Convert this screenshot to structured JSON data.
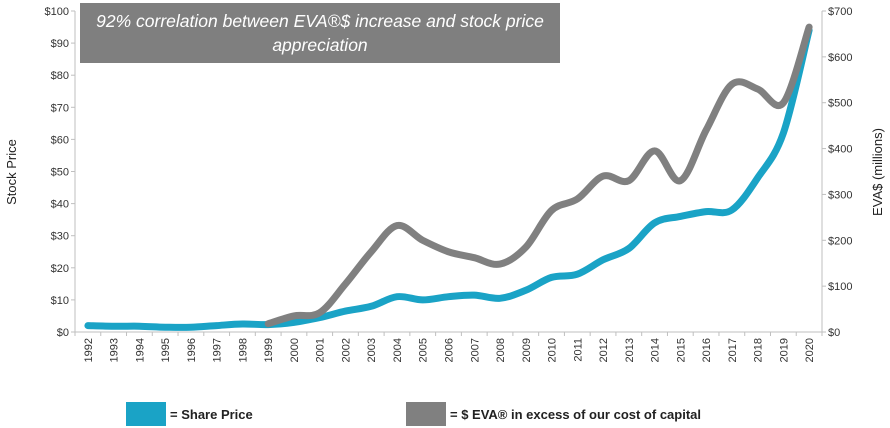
{
  "chart_data": {
    "type": "line",
    "title": "92% correlation between EVA®$ increase and stock price appreciation",
    "categories": [
      "1992",
      "1993",
      "1994",
      "1995",
      "1996",
      "1997",
      "1998",
      "1999",
      "2000",
      "2001",
      "2002",
      "2003",
      "2004",
      "2005",
      "2006",
      "2007",
      "2008",
      "2009",
      "2010",
      "2011",
      "2012",
      "2013",
      "2014",
      "2015",
      "2016",
      "2017",
      "2018",
      "2019",
      "2020"
    ],
    "left_axis": {
      "label": "Stock Price",
      "ylim": [
        0,
        100
      ],
      "ticks": [
        0,
        10,
        20,
        30,
        40,
        50,
        60,
        70,
        80,
        90,
        100
      ],
      "tick_labels": [
        "$0",
        "$10",
        "$20",
        "$30",
        "$40",
        "$50",
        "$60",
        "$70",
        "$80",
        "$90",
        "$100"
      ]
    },
    "right_axis": {
      "label": "EVA$ (millions)",
      "ylim": [
        0,
        700
      ],
      "ticks": [
        0,
        100,
        200,
        300,
        400,
        500,
        600,
        700
      ],
      "tick_labels": [
        "$0",
        "$100",
        "$200",
        "$300",
        "$400",
        "$500",
        "$600",
        "$700"
      ]
    },
    "series": [
      {
        "name": "= Share Price",
        "axis": "left",
        "color": "#1aa3c6",
        "values": [
          2,
          1.8,
          1.8,
          1.5,
          1.5,
          2,
          2.5,
          2.3,
          3,
          4.5,
          6.5,
          8,
          11,
          10,
          11,
          11.5,
          10.5,
          13,
          17,
          18,
          22.5,
          26,
          34,
          36,
          37.5,
          38,
          48,
          62,
          94
        ]
      },
      {
        "name": "= $ EVA® in excess of our cost of capital",
        "axis": "right",
        "color": "#808080",
        "values": [
          null,
          null,
          null,
          null,
          null,
          null,
          null,
          18,
          35,
          42,
          105,
          175,
          232,
          200,
          175,
          162,
          148,
          185,
          265,
          290,
          340,
          330,
          395,
          330,
          440,
          540,
          530,
          500,
          665
        ]
      }
    ]
  }
}
